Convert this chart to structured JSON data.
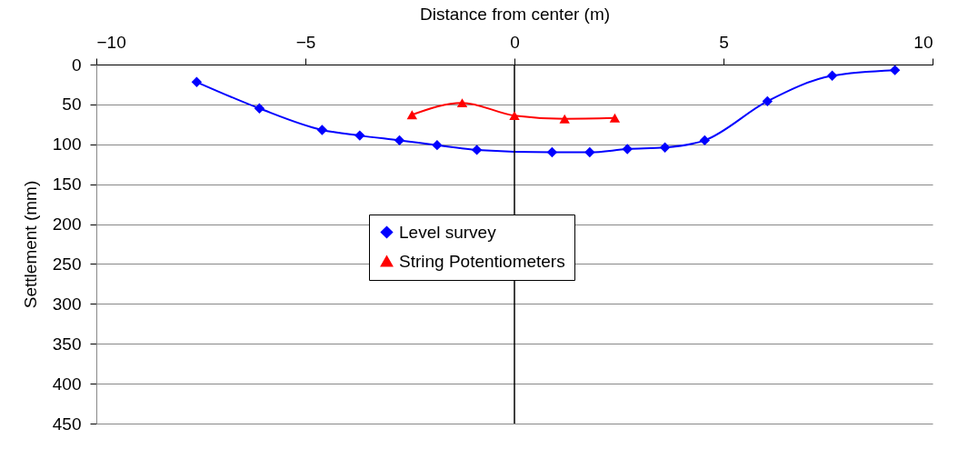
{
  "chart_data": {
    "type": "line",
    "xlabel": "Distance from center (m)",
    "ylabel": "Settlement (mm)",
    "xlim": [
      -10,
      10
    ],
    "xticks": [
      -10,
      -5,
      0,
      5,
      10
    ],
    "ylim": [
      450,
      0
    ],
    "yticks": [
      0,
      50,
      100,
      150,
      200,
      250,
      300,
      350,
      400,
      450
    ],
    "grid": "y",
    "legend": "center",
    "line_style": "solid",
    "ref_lines": [
      {
        "axis": "x",
        "value": 0,
        "color": "#000000"
      }
    ],
    "series": [
      {
        "name": "Level survey",
        "color": "#0000ff",
        "marker": "diamond",
        "x": [
          -7.6,
          -6.1,
          -4.6,
          -3.7,
          -2.75,
          -1.85,
          -0.9,
          0.9,
          1.8,
          2.7,
          3.6,
          4.55,
          6.05,
          7.6,
          9.1
        ],
        "values": [
          22,
          55,
          82,
          89,
          95,
          101,
          107,
          110,
          110,
          106,
          104,
          95,
          46,
          14,
          7
        ]
      },
      {
        "name": "String Potentiometers",
        "color": "#ff0000",
        "marker": "triangle",
        "x": [
          -2.45,
          -1.25,
          0,
          1.2,
          2.4
        ],
        "values": [
          63,
          48,
          64,
          68,
          67
        ]
      }
    ]
  }
}
